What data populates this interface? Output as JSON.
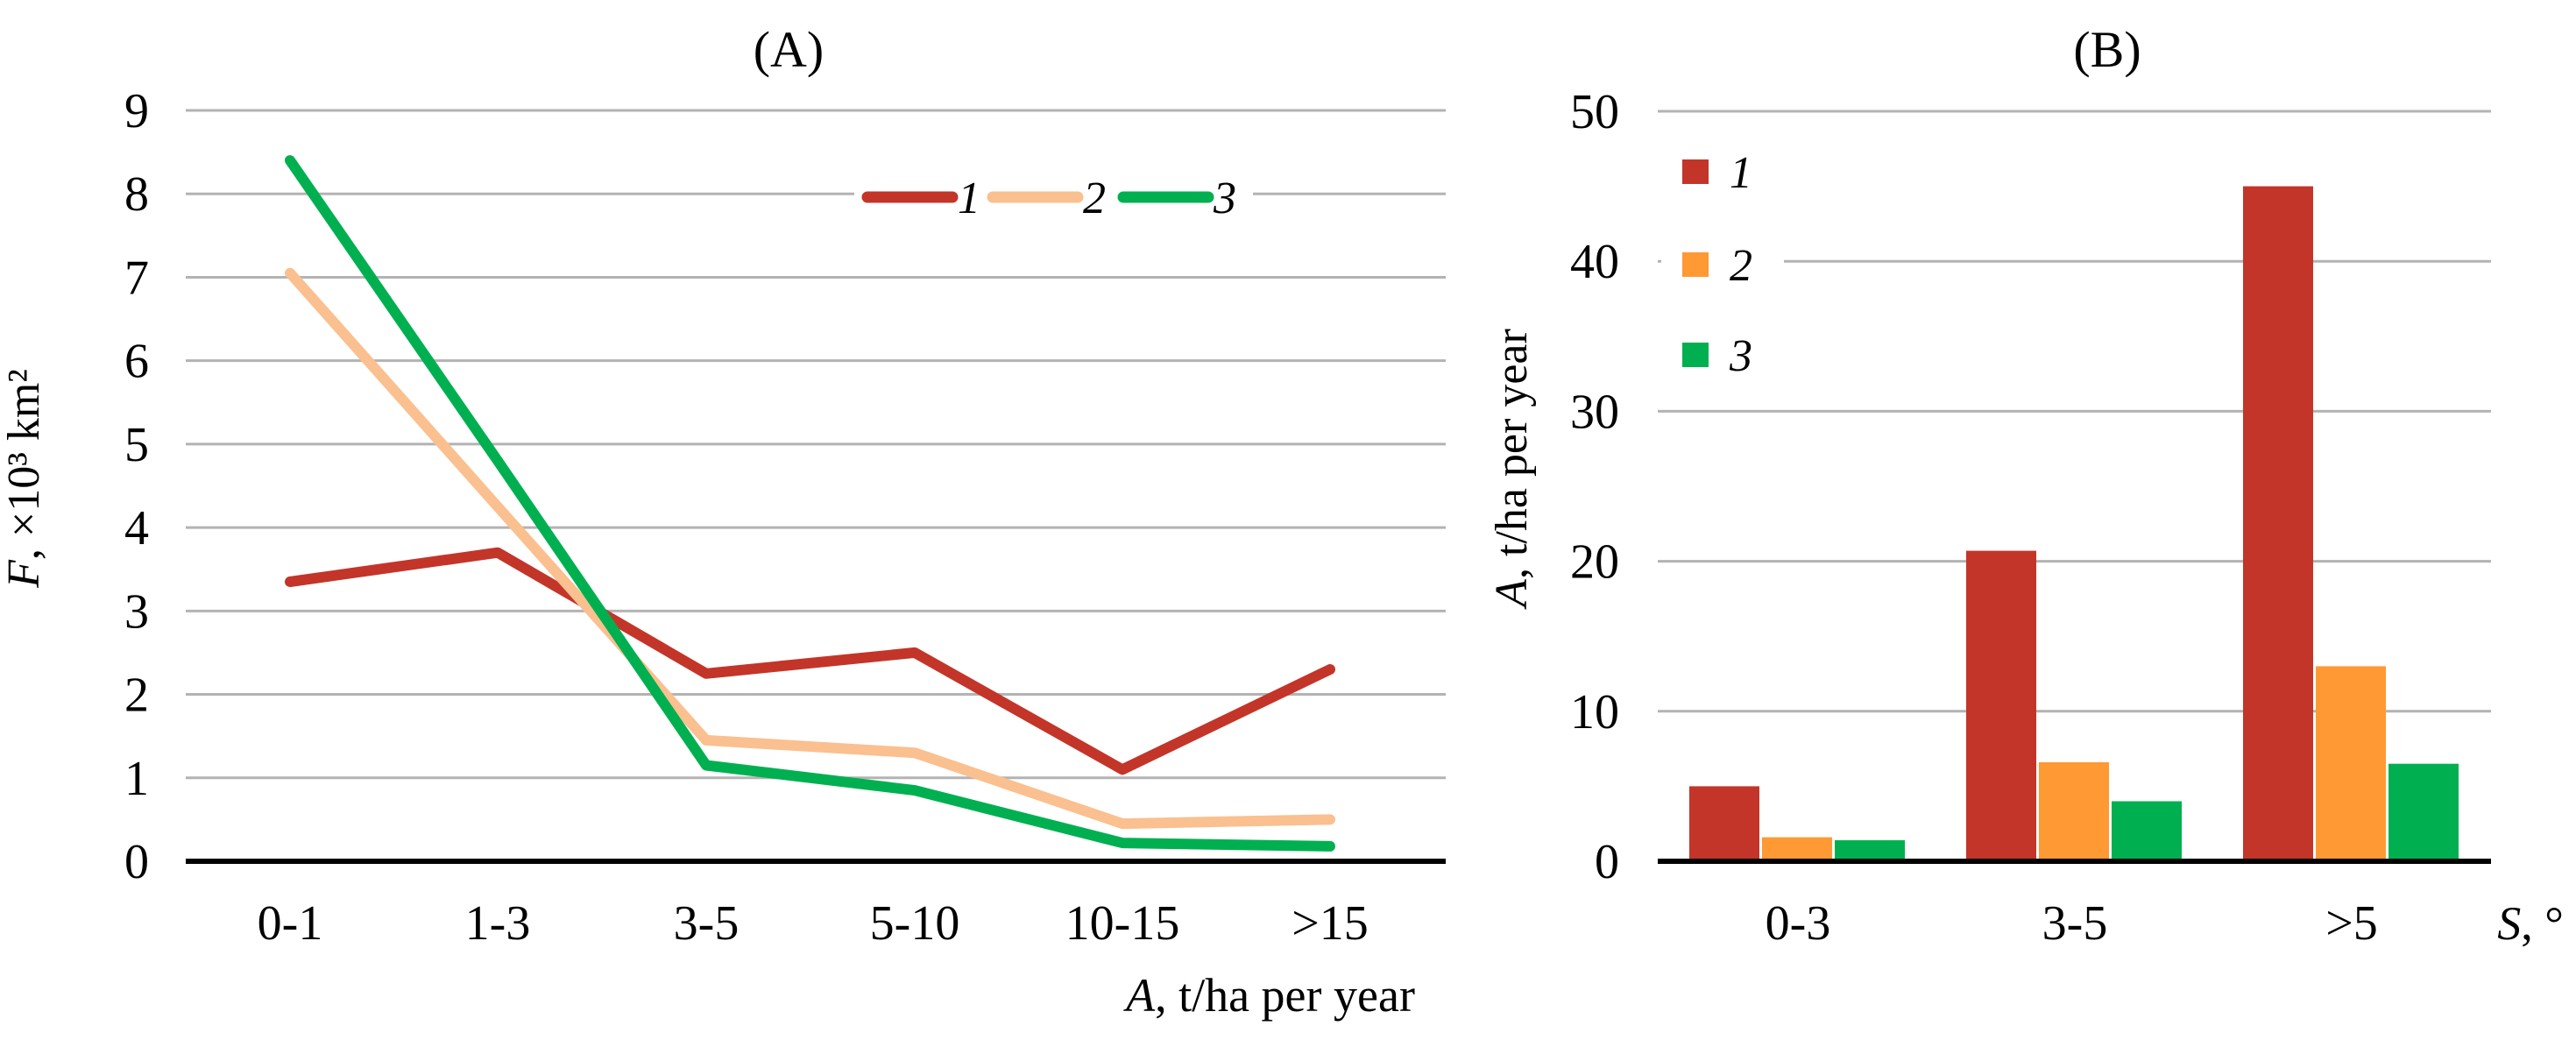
{
  "figure": {
    "background": "#ffffff",
    "grid_color": "#b3b3b3",
    "axis_color": "#000000",
    "text_color": "#000000"
  },
  "chart_data": [
    {
      "id": "A",
      "type": "line",
      "title": "(A)",
      "categories": [
        "0-1",
        "1-3",
        "3-5",
        "5-10",
        "10-15",
        ">15"
      ],
      "series": [
        {
          "name": "1",
          "color": "#c33529",
          "values": [
            3.35,
            3.7,
            2.25,
            2.5,
            1.1,
            2.3
          ]
        },
        {
          "name": "2",
          "color": "#fac090",
          "values": [
            7.05,
            4.25,
            1.45,
            1.3,
            0.45,
            0.5
          ]
        },
        {
          "name": "3",
          "color": "#00b050",
          "values": [
            8.4,
            4.8,
            1.15,
            0.85,
            0.22,
            0.18
          ]
        }
      ],
      "xlabel": "A, t/ha per year",
      "xlabel_var": "A",
      "xlabel_rest": ", t/ha per year",
      "ylabel": "F, ×10³ km²",
      "ylabel_var": "F",
      "ylabel_rest": ", ×10³ km²",
      "ylim": [
        0,
        9
      ],
      "yticks": [
        0,
        1,
        2,
        3,
        4,
        5,
        6,
        7,
        8,
        9
      ],
      "grid": true,
      "legend_position": "inside-top-right",
      "legend_orientation": "horizontal"
    },
    {
      "id": "B",
      "type": "bar",
      "title": "(B)",
      "categories": [
        "0-3",
        "3-5",
        ">5"
      ],
      "series": [
        {
          "name": "1",
          "color": "#c33529",
          "values": [
            5,
            20.7,
            45
          ]
        },
        {
          "name": "2",
          "color": "#ff9933",
          "values": [
            1.6,
            6.6,
            13
          ]
        },
        {
          "name": "3",
          "color": "#00b050",
          "values": [
            1.4,
            4,
            6.5
          ]
        }
      ],
      "xlabel": "S, °",
      "xlabel_var": "S",
      "xlabel_rest": ", °",
      "ylabel": "A, t/ha per year",
      "ylabel_var": "A",
      "ylabel_rest": ", t/ha per year",
      "ylim": [
        0,
        50
      ],
      "yticks": [
        0,
        10,
        20,
        30,
        40,
        50
      ],
      "grid": true,
      "legend_position": "inside-top-left",
      "legend_orientation": "vertical"
    }
  ]
}
